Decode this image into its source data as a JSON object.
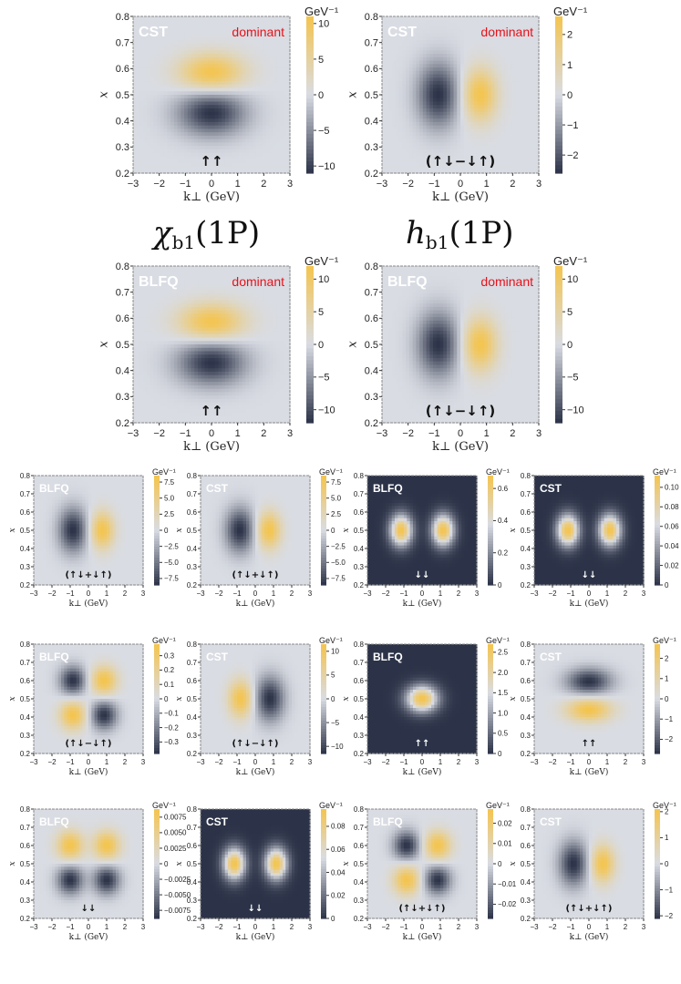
{
  "headings": [
    {
      "symbol": "χ",
      "subscript": "b1",
      "argument": "(1P)"
    },
    {
      "symbol": "h",
      "subscript": "b1",
      "argument": "(1P)"
    }
  ],
  "colors": {
    "low": "#2c3348",
    "mid": "#d9dce3",
    "high": "#f4c44e",
    "frame": "#888888",
    "highlight": "#e8121a"
  },
  "chart_data": [
    {
      "type": "heatmap",
      "model": "CST",
      "tag": "dominant",
      "spin": "↑↑",
      "pattern": "py",
      "dark_bg": false,
      "xlabel": "k⊥ (GeV)",
      "ylabel": "x",
      "xlim": [
        -3,
        3
      ],
      "ylim": [
        0.2,
        0.8
      ],
      "xticks": [
        "−3",
        "−2",
        "−1",
        "0",
        "1",
        "2",
        "3"
      ],
      "yticks": [
        "0.2",
        "0.3",
        "0.4",
        "0.5",
        "0.6",
        "0.7",
        "0.8"
      ],
      "colorbar": {
        "unit": "GeV⁻¹",
        "range": [
          -11,
          11
        ],
        "ticks": [
          {
            "v": 10,
            "t": "10"
          },
          {
            "v": 5,
            "t": "5"
          },
          {
            "v": 0,
            "t": "0"
          },
          {
            "v": -5,
            "t": "−5"
          },
          {
            "v": -10,
            "t": "−10"
          }
        ]
      }
    },
    {
      "type": "heatmap",
      "model": "CST",
      "tag": "dominant",
      "spin": "(↑↓−↓↑)",
      "pattern": "px",
      "dark_bg": false,
      "xlabel": "k⊥ (GeV)",
      "ylabel": "x",
      "xlim": [
        -3,
        3
      ],
      "ylim": [
        0.2,
        0.8
      ],
      "xticks": [
        "−3",
        "−2",
        "−1",
        "0",
        "1",
        "2",
        "3"
      ],
      "yticks": [
        "0.2",
        "0.3",
        "0.4",
        "0.5",
        "0.6",
        "0.7",
        "0.8"
      ],
      "colorbar": {
        "unit": "GeV⁻¹",
        "range": [
          -2.6,
          2.6
        ],
        "ticks": [
          {
            "v": 2,
            "t": "2"
          },
          {
            "v": 1,
            "t": "1"
          },
          {
            "v": 0,
            "t": "0"
          },
          {
            "v": -1,
            "t": "−1"
          },
          {
            "v": -2,
            "t": "−2"
          }
        ]
      }
    },
    {
      "type": "heatmap",
      "model": "BLFQ",
      "tag": "dominant",
      "spin": "↑↑",
      "pattern": "py",
      "dark_bg": false,
      "xlabel": "k⊥ (GeV)",
      "ylabel": "x",
      "xlim": [
        -3,
        3
      ],
      "ylim": [
        0.2,
        0.8
      ],
      "xticks": [
        "−3",
        "−2",
        "−1",
        "0",
        "1",
        "2",
        "3"
      ],
      "yticks": [
        "0.2",
        "0.3",
        "0.4",
        "0.5",
        "0.6",
        "0.7",
        "0.8"
      ],
      "colorbar": {
        "unit": "GeV⁻¹",
        "range": [
          -12,
          12
        ],
        "ticks": [
          {
            "v": 10,
            "t": "10"
          },
          {
            "v": 5,
            "t": "5"
          },
          {
            "v": 0,
            "t": "0"
          },
          {
            "v": -5,
            "t": "−5"
          },
          {
            "v": -10,
            "t": "−10"
          }
        ]
      }
    },
    {
      "type": "heatmap",
      "model": "BLFQ",
      "tag": "dominant",
      "spin": "(↑↓−↓↑)",
      "pattern": "px",
      "dark_bg": false,
      "xlabel": "k⊥ (GeV)",
      "ylabel": "x",
      "xlim": [
        -3,
        3
      ],
      "ylim": [
        0.2,
        0.8
      ],
      "xticks": [
        "−3",
        "−2",
        "−1",
        "0",
        "1",
        "2",
        "3"
      ],
      "yticks": [
        "0.2",
        "0.3",
        "0.4",
        "0.5",
        "0.6",
        "0.7",
        "0.8"
      ],
      "colorbar": {
        "unit": "GeV⁻¹",
        "range": [
          -12,
          12
        ],
        "ticks": [
          {
            "v": 10,
            "t": "10"
          },
          {
            "v": 5,
            "t": "5"
          },
          {
            "v": 0,
            "t": "0"
          },
          {
            "v": -5,
            "t": "−5"
          },
          {
            "v": -10,
            "t": "−10"
          }
        ]
      }
    },
    {
      "type": "heatmap",
      "model": "BLFQ",
      "tag": "",
      "spin": "(↑↓+↓↑)",
      "pattern": "px",
      "dark_bg": false,
      "xlabel": "k⊥ (GeV)",
      "ylabel": "x",
      "xlim": [
        -3,
        3
      ],
      "ylim": [
        0.2,
        0.8
      ],
      "xticks": [
        "−3",
        "−2",
        "−1",
        "0",
        "1",
        "2",
        "3"
      ],
      "yticks": [
        "0.2",
        "0.3",
        "0.4",
        "0.5",
        "0.6",
        "0.7",
        "0.8"
      ],
      "colorbar": {
        "unit": "GeV⁻¹",
        "range": [
          -8.5,
          8.5
        ],
        "ticks": [
          {
            "v": 7.5,
            "t": "7.5"
          },
          {
            "v": 5,
            "t": "5.0"
          },
          {
            "v": 2.5,
            "t": "2.5"
          },
          {
            "v": 0,
            "t": "0"
          },
          {
            "v": -2.5,
            "t": "−2.5"
          },
          {
            "v": -5,
            "t": "−5.0"
          },
          {
            "v": -7.5,
            "t": "−7.5"
          }
        ]
      }
    },
    {
      "type": "heatmap",
      "model": "CST",
      "tag": "",
      "spin": "(↑↓+↓↑)",
      "pattern": "px",
      "dark_bg": false,
      "xlabel": "k⊥ (GeV)",
      "ylabel": "x",
      "xlim": [
        -3,
        3
      ],
      "ylim": [
        0.2,
        0.8
      ],
      "xticks": [
        "−3",
        "−2",
        "−1",
        "0",
        "1",
        "2",
        "3"
      ],
      "yticks": [
        "0.2",
        "0.3",
        "0.4",
        "0.5",
        "0.6",
        "0.7",
        "0.8"
      ],
      "colorbar": {
        "unit": "GeV⁻¹",
        "range": [
          -8.5,
          8.5
        ],
        "ticks": [
          {
            "v": 7.5,
            "t": "7.5"
          },
          {
            "v": 5,
            "t": "5.0"
          },
          {
            "v": 2.5,
            "t": "2.5"
          },
          {
            "v": 0,
            "t": "0"
          },
          {
            "v": -2.5,
            "t": "−2.5"
          },
          {
            "v": -5,
            "t": "−5.0"
          },
          {
            "v": -7.5,
            "t": "−7.5"
          }
        ]
      }
    },
    {
      "type": "heatmap",
      "model": "BLFQ",
      "tag": "",
      "spin": "↓↓",
      "pattern": "two",
      "dark_bg": true,
      "xlabel": "k⊥ (GeV)",
      "ylabel": "x",
      "xlim": [
        -3,
        3
      ],
      "ylim": [
        0.2,
        0.8
      ],
      "xticks": [
        "−3",
        "−2",
        "−1",
        "0",
        "1",
        "2",
        "3"
      ],
      "yticks": [
        "0.2",
        "0.3",
        "0.4",
        "0.5",
        "0.6",
        "0.7",
        "0.8"
      ],
      "colorbar": {
        "unit": "GeV⁻¹",
        "range": [
          0,
          0.68
        ],
        "ticks": [
          {
            "v": 0.6,
            "t": "0.6"
          },
          {
            "v": 0.4,
            "t": "0.4"
          },
          {
            "v": 0.2,
            "t": "0.2"
          },
          {
            "v": 0,
            "t": "0"
          }
        ]
      }
    },
    {
      "type": "heatmap",
      "model": "CST",
      "tag": "",
      "spin": "↓↓",
      "pattern": "two",
      "dark_bg": true,
      "xlabel": "k⊥ (GeV)",
      "ylabel": "x",
      "xlim": [
        -3,
        3
      ],
      "ylim": [
        0.2,
        0.8
      ],
      "xticks": [
        "−3",
        "−2",
        "−1",
        "0",
        "1",
        "2",
        "3"
      ],
      "yticks": [
        "0.2",
        "0.3",
        "0.4",
        "0.5",
        "0.6",
        "0.7",
        "0.8"
      ],
      "colorbar": {
        "unit": "GeV⁻¹",
        "range": [
          0,
          0.112
        ],
        "ticks": [
          {
            "v": 0.1,
            "t": "0.10"
          },
          {
            "v": 0.08,
            "t": "0.08"
          },
          {
            "v": 0.06,
            "t": "0.06"
          },
          {
            "v": 0.04,
            "t": "0.04"
          },
          {
            "v": 0.02,
            "t": "0.02"
          },
          {
            "v": 0,
            "t": "0"
          }
        ]
      }
    },
    {
      "type": "heatmap",
      "model": "BLFQ",
      "tag": "",
      "spin": "(↑↓−↓↑)",
      "pattern": "quad",
      "dark_bg": false,
      "xlabel": "k⊥ (GeV)",
      "ylabel": "x",
      "xlim": [
        -3,
        3
      ],
      "ylim": [
        0.2,
        0.8
      ],
      "xticks": [
        "−3",
        "−2",
        "−1",
        "0",
        "1",
        "2",
        "3"
      ],
      "yticks": [
        "0.2",
        "0.3",
        "0.4",
        "0.5",
        "0.6",
        "0.7",
        "0.8"
      ],
      "colorbar": {
        "unit": "GeV⁻¹",
        "range": [
          -0.38,
          0.38
        ],
        "ticks": [
          {
            "v": 0.3,
            "t": "0.3"
          },
          {
            "v": 0.2,
            "t": "0.2"
          },
          {
            "v": 0.1,
            "t": "0.1"
          },
          {
            "v": 0,
            "t": "0"
          },
          {
            "v": -0.1,
            "t": "−0.1"
          },
          {
            "v": -0.2,
            "t": "−0.2"
          },
          {
            "v": -0.3,
            "t": "−0.3"
          }
        ]
      }
    },
    {
      "type": "heatmap",
      "model": "CST",
      "tag": "",
      "spin": "(↑↓−↓↑)",
      "pattern": "pxneg",
      "dark_bg": false,
      "xlabel": "k⊥ (GeV)",
      "ylabel": "x",
      "xlim": [
        -3,
        3
      ],
      "ylim": [
        0.2,
        0.8
      ],
      "xticks": [
        "−3",
        "−2",
        "−1",
        "0",
        "1",
        "2",
        "3"
      ],
      "yticks": [
        "0.2",
        "0.3",
        "0.4",
        "0.5",
        "0.6",
        "0.7",
        "0.8"
      ],
      "colorbar": {
        "unit": "GeV⁻¹",
        "range": [
          -11.5,
          11.5
        ],
        "ticks": [
          {
            "v": 10,
            "t": "10"
          },
          {
            "v": 5,
            "t": "5"
          },
          {
            "v": 0,
            "t": "0"
          },
          {
            "v": -5,
            "t": "−5"
          },
          {
            "v": -10,
            "t": "−10"
          }
        ]
      }
    },
    {
      "type": "heatmap",
      "model": "BLFQ",
      "tag": "",
      "spin": "↑↑",
      "pattern": "one",
      "dark_bg": true,
      "xlabel": "k⊥ (GeV)",
      "ylabel": "x",
      "xlim": [
        -3,
        3
      ],
      "ylim": [
        0.2,
        0.8
      ],
      "xticks": [
        "−3",
        "−2",
        "−1",
        "0",
        "1",
        "2",
        "3"
      ],
      "yticks": [
        "0.2",
        "0.3",
        "0.4",
        "0.5",
        "0.6",
        "0.7",
        "0.8"
      ],
      "colorbar": {
        "unit": "GeV⁻¹",
        "range": [
          0,
          2.7
        ],
        "ticks": [
          {
            "v": 2.5,
            "t": "2.5"
          },
          {
            "v": 2,
            "t": "2.0"
          },
          {
            "v": 1.5,
            "t": "1.5"
          },
          {
            "v": 1,
            "t": "1.0"
          },
          {
            "v": 0.5,
            "t": "0.5"
          },
          {
            "v": 0,
            "t": "0"
          }
        ]
      }
    },
    {
      "type": "heatmap",
      "model": "CST",
      "tag": "",
      "spin": "↑↑",
      "pattern": "pyneg",
      "dark_bg": false,
      "xlabel": "k⊥ (GeV)",
      "ylabel": "x",
      "xlim": [
        -3,
        3
      ],
      "ylim": [
        0.2,
        0.8
      ],
      "xticks": [
        "−3",
        "−2",
        "−1",
        "0",
        "1",
        "2",
        "3"
      ],
      "yticks": [
        "0.2",
        "0.3",
        "0.4",
        "0.5",
        "0.6",
        "0.7",
        "0.8"
      ],
      "colorbar": {
        "unit": "GeV⁻¹",
        "range": [
          -2.7,
          2.7
        ],
        "ticks": [
          {
            "v": 2,
            "t": "2"
          },
          {
            "v": 1,
            "t": "1"
          },
          {
            "v": 0,
            "t": "0"
          },
          {
            "v": -1,
            "t": "−1"
          },
          {
            "v": -2,
            "t": "−2"
          }
        ]
      }
    },
    {
      "type": "heatmap",
      "model": "BLFQ",
      "tag": "",
      "spin": "↓↓",
      "pattern": "quad2",
      "dark_bg": false,
      "xlabel": "k⊥ (GeV)",
      "ylabel": "x",
      "xlim": [
        -3,
        3
      ],
      "ylim": [
        0.2,
        0.8
      ],
      "xticks": [
        "−3",
        "−2",
        "−1",
        "0",
        "1",
        "2",
        "3"
      ],
      "yticks": [
        "0.2",
        "0.3",
        "0.4",
        "0.5",
        "0.6",
        "0.7",
        "0.8"
      ],
      "colorbar": {
        "unit": "GeV⁻¹",
        "range": [
          -0.0088,
          0.0088
        ],
        "ticks": [
          {
            "v": 0.0075,
            "t": "0.0075"
          },
          {
            "v": 0.005,
            "t": "0.0050"
          },
          {
            "v": 0.0025,
            "t": "0.0025"
          },
          {
            "v": 0,
            "t": "0"
          },
          {
            "v": -0.0025,
            "t": "−0.0025"
          },
          {
            "v": -0.005,
            "t": "−0.0050"
          },
          {
            "v": -0.0075,
            "t": "−0.0075"
          }
        ]
      }
    },
    {
      "type": "heatmap",
      "model": "CST",
      "tag": "",
      "spin": "↓↓",
      "pattern": "two",
      "dark_bg": true,
      "xlabel": "k⊥ (GeV)",
      "ylabel": "x",
      "xlim": [
        -3,
        3
      ],
      "ylim": [
        0.2,
        0.8
      ],
      "xticks": [
        "−3",
        "−2",
        "−1",
        "0",
        "1",
        "2",
        "3"
      ],
      "yticks": [
        "0.2",
        "0.3",
        "0.4",
        "0.5",
        "0.6",
        "0.7",
        "0.8"
      ],
      "colorbar": {
        "unit": "GeV⁻¹",
        "range": [
          0,
          0.095
        ],
        "ticks": [
          {
            "v": 0.08,
            "t": "0.08"
          },
          {
            "v": 0.06,
            "t": "0.06"
          },
          {
            "v": 0.04,
            "t": "0.04"
          },
          {
            "v": 0.02,
            "t": "0.02"
          },
          {
            "v": 0,
            "t": "0"
          }
        ]
      }
    },
    {
      "type": "heatmap",
      "model": "BLFQ",
      "tag": "",
      "spin": "(↑↓+↓↑)",
      "pattern": "quad",
      "dark_bg": false,
      "xlabel": "k⊥ (GeV)",
      "ylabel": "x",
      "xlim": [
        -3,
        3
      ],
      "ylim": [
        0.2,
        0.8
      ],
      "xticks": [
        "−3",
        "−2",
        "−1",
        "0",
        "1",
        "2",
        "3"
      ],
      "yticks": [
        "0.2",
        "0.3",
        "0.4",
        "0.5",
        "0.6",
        "0.7",
        "0.8"
      ],
      "colorbar": {
        "unit": "GeV⁻¹",
        "range": [
          -0.027,
          0.027
        ],
        "ticks": [
          {
            "v": 0.02,
            "t": "0.02"
          },
          {
            "v": 0.01,
            "t": "0.01"
          },
          {
            "v": 0,
            "t": "0"
          },
          {
            "v": -0.01,
            "t": "−0.01"
          },
          {
            "v": -0.02,
            "t": "−0.02"
          }
        ]
      }
    },
    {
      "type": "heatmap",
      "model": "CST",
      "tag": "",
      "spin": "(↑↓+↓↑)",
      "pattern": "px",
      "dark_bg": false,
      "xlabel": "k⊥ (GeV)",
      "ylabel": "x",
      "xlim": [
        -3,
        3
      ],
      "ylim": [
        0.2,
        0.8
      ],
      "xticks": [
        "−3",
        "−2",
        "−1",
        "0",
        "1",
        "2",
        "3"
      ],
      "yticks": [
        "0.2",
        "0.3",
        "0.4",
        "0.5",
        "0.6",
        "0.7",
        "0.8"
      ],
      "colorbar": {
        "unit": "GeV⁻¹",
        "range": [
          -2.1,
          2.1
        ],
        "ticks": [
          {
            "v": 2,
            "t": "2"
          },
          {
            "v": 1,
            "t": "1"
          },
          {
            "v": 0,
            "t": "0"
          },
          {
            "v": -1,
            "t": "−1"
          },
          {
            "v": -2,
            "t": "−2"
          }
        ]
      }
    }
  ]
}
